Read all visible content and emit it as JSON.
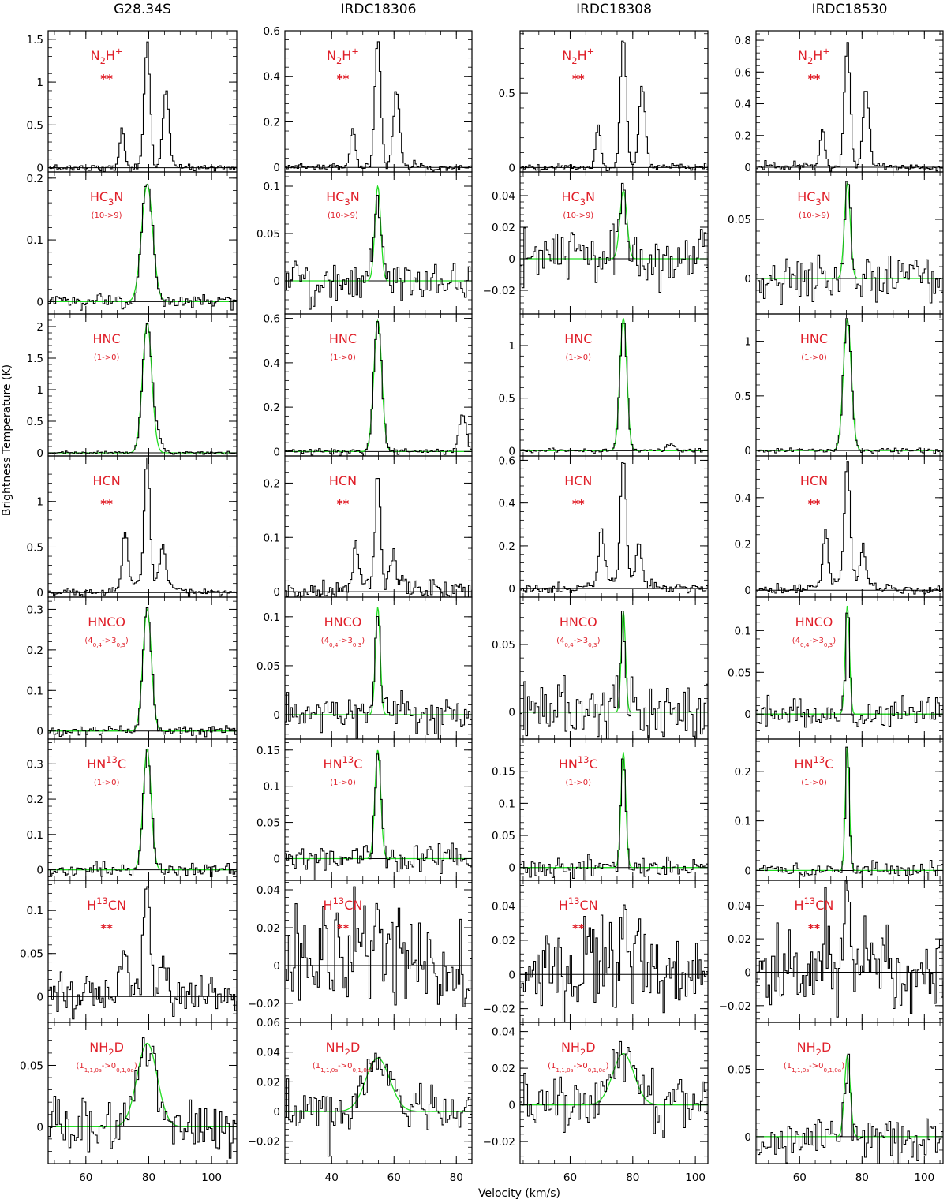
{
  "chart_data": {
    "type": "line",
    "xlabel": "Velocity (km/s)",
    "ylabel": "Brightness Temperature (K)",
    "columns": [
      {
        "name": "G28.34S",
        "v_lsr": 79.5,
        "xlim": [
          48,
          108
        ],
        "xticks": [
          60,
          80,
          100
        ]
      },
      {
        "name": "IRDC18306",
        "v_lsr": 54.8,
        "xlim": [
          25,
          85
        ],
        "xticks": [
          40,
          60,
          80
        ]
      },
      {
        "name": "IRDC18308",
        "v_lsr": 77.0,
        "xlim": [
          44,
          104
        ],
        "xticks": [
          60,
          80,
          100
        ]
      },
      {
        "name": "IRDC18530",
        "v_lsr": 75.3,
        "xlim": [
          46,
          106
        ],
        "xticks": [
          60,
          80,
          100
        ]
      }
    ],
    "rows": [
      {
        "molecule": "N<sub>2</sub>H<sup>+</sup>",
        "transition": "",
        "flag": "**",
        "profile": "n2h",
        "fit": false,
        "panels": [
          {
            "ylim": [
              -0.05,
              1.6
            ],
            "yticks": [
              "0",
              "0.5",
              "1",
              "1.5"
            ],
            "yvals": [
              0,
              0.5,
              1,
              1.5
            ],
            "peak": 1.45,
            "noise": 0.02
          },
          {
            "ylim": [
              -0.02,
              0.6
            ],
            "yticks": [
              "0",
              "0.2",
              "0.4",
              "0.6"
            ],
            "yvals": [
              0,
              0.2,
              0.4,
              0.6
            ],
            "peak": 0.56,
            "noise": 0.008
          },
          {
            "ylim": [
              -0.03,
              0.92
            ],
            "yticks": [
              "0",
              "0.5"
            ],
            "yvals": [
              0,
              0.5
            ],
            "peak": 0.88,
            "noise": 0.012
          },
          {
            "ylim": [
              -0.03,
              0.86
            ],
            "yticks": [
              "0",
              "0.2",
              "0.4",
              "0.6",
              "0.8"
            ],
            "yvals": [
              0,
              0.2,
              0.4,
              0.6,
              0.8
            ],
            "peak": 0.8,
            "noise": 0.012
          }
        ]
      },
      {
        "molecule": "HC<sub>3</sub>N",
        "transition": "(10->9)",
        "flag": "",
        "profile": "gauss",
        "fit": true,
        "panels": [
          {
            "ylim": [
              -0.02,
              0.21
            ],
            "yticks": [
              "0",
              "0.1",
              "0.2"
            ],
            "yvals": [
              0,
              0.1,
              0.2
            ],
            "peak": 0.19,
            "width": 4.2,
            "noise": 0.006
          },
          {
            "ylim": [
              -0.035,
              0.115
            ],
            "yticks": [
              "0",
              "0.05",
              "0.1"
            ],
            "yvals": [
              0,
              0.05,
              0.1
            ],
            "peak": 0.1,
            "width": 2.2,
            "noise": 0.011
          },
          {
            "ylim": [
              -0.035,
              0.055
            ],
            "yticks": [
              "−0.02",
              "0",
              "0.02",
              "0.04"
            ],
            "yvals": [
              -0.02,
              0,
              0.02,
              0.04
            ],
            "peak": 0.043,
            "width": 2.6,
            "noise": 0.01
          },
          {
            "ylim": [
              -0.03,
              0.09
            ],
            "yticks": [
              "0",
              "0.05"
            ],
            "yvals": [
              0,
              0.05
            ],
            "peak": 0.08,
            "width": 2.2,
            "noise": 0.01
          }
        ]
      },
      {
        "molecule": "HNC",
        "transition": "(1->0)",
        "flag": "",
        "profile": "gauss",
        "fit": true,
        "panels": [
          {
            "ylim": [
              -0.05,
              2.2
            ],
            "yticks": [
              "0",
              "0.5",
              "1",
              "1.5",
              "2"
            ],
            "yvals": [
              0,
              0.5,
              1,
              1.5,
              2
            ],
            "peak": 2.05,
            "width": 3.5,
            "noise": 0.012,
            "extra": [
              [
                83,
                0.25,
                3
              ]
            ]
          },
          {
            "ylim": [
              -0.02,
              0.62
            ],
            "yticks": [
              "0",
              "0.2",
              "0.4",
              "0.6"
            ],
            "yvals": [
              0,
              0.2,
              0.4,
              0.6
            ],
            "peak": 0.59,
            "width": 3.0,
            "noise": 0.006,
            "extra": [
              [
                82,
                0.18,
                2.5
              ]
            ]
          },
          {
            "ylim": [
              -0.05,
              1.3
            ],
            "yticks": [
              "0",
              "0.5",
              "1"
            ],
            "yvals": [
              0,
              0.5,
              1
            ],
            "peak": 1.26,
            "width": 2.6,
            "noise": 0.01,
            "extra": [
              [
                92,
                0.06,
                3
              ]
            ]
          },
          {
            "ylim": [
              -0.05,
              1.25
            ],
            "yticks": [
              "0",
              "0.5",
              "1"
            ],
            "yvals": [
              0,
              0.5,
              1
            ],
            "peak": 1.2,
            "width": 3.0,
            "noise": 0.012
          }
        ]
      },
      {
        "molecule": "HCN",
        "transition": "",
        "flag": "**",
        "profile": "hcn",
        "fit": false,
        "panels": [
          {
            "ylim": [
              -0.05,
              1.5
            ],
            "yticks": [
              "0",
              "0.5",
              "1"
            ],
            "yvals": [
              0,
              0.5,
              1
            ],
            "peak": 1.38,
            "noise": 0.02
          },
          {
            "ylim": [
              -0.01,
              0.25
            ],
            "yticks": [
              "0",
              "0.1",
              "0.2"
            ],
            "yvals": [
              0,
              0.1,
              0.2
            ],
            "peak": 0.19,
            "noise": 0.01
          },
          {
            "ylim": [
              -0.04,
              0.62
            ],
            "yticks": [
              "0",
              "0.2",
              "0.4",
              "0.6"
            ],
            "yvals": [
              0,
              0.2,
              0.4,
              0.6
            ],
            "peak": 0.56,
            "noise": 0.012
          },
          {
            "ylim": [
              -0.03,
              0.58
            ],
            "yticks": [
              "0",
              "0.2",
              "0.4"
            ],
            "yvals": [
              0,
              0.2,
              0.4
            ],
            "peak": 0.52,
            "noise": 0.01
          }
        ]
      },
      {
        "molecule": "HNCO",
        "transition": "(4<sub>0,4</sub>->3<sub>0,3</sub>)",
        "flag": "",
        "profile": "gauss",
        "fit": true,
        "panels": [
          {
            "ylim": [
              -0.02,
              0.33
            ],
            "yticks": [
              "0",
              "0.1",
              "0.2",
              "0.3"
            ],
            "yvals": [
              0,
              0.1,
              0.2,
              0.3
            ],
            "peak": 0.3,
            "width": 3.2,
            "noise": 0.006
          },
          {
            "ylim": [
              -0.025,
              0.12
            ],
            "yticks": [
              "0",
              "0.05",
              "0.1"
            ],
            "yvals": [
              0,
              0.05,
              0.1
            ],
            "peak": 0.11,
            "width": 1.8,
            "noise": 0.01
          },
          {
            "ylim": [
              -0.02,
              0.085
            ],
            "yticks": [
              "0",
              "0.05"
            ],
            "yvals": [
              0,
              0.05
            ],
            "peak": 0.075,
            "width": 1.6,
            "noise": 0.011
          },
          {
            "ylim": [
              -0.03,
              0.14
            ],
            "yticks": [
              "0",
              "0.05",
              "0.1"
            ],
            "yvals": [
              0,
              0.05,
              0.1
            ],
            "peak": 0.13,
            "width": 1.6,
            "noise": 0.009
          }
        ]
      },
      {
        "molecule": "HN<sup>13</sup>C",
        "transition": "(1->0)",
        "flag": "",
        "profile": "gauss",
        "fit": true,
        "panels": [
          {
            "ylim": [
              -0.03,
              0.37
            ],
            "yticks": [
              "0",
              "0.1",
              "0.2",
              "0.3"
            ],
            "yvals": [
              0,
              0.1,
              0.2,
              0.3
            ],
            "peak": 0.34,
            "width": 3.0,
            "noise": 0.01
          },
          {
            "ylim": [
              -0.03,
              0.165
            ],
            "yticks": [
              "0",
              "0.05",
              "0.1",
              "0.15"
            ],
            "yvals": [
              0,
              0.05,
              0.1,
              0.15
            ],
            "peak": 0.15,
            "width": 2.2,
            "noise": 0.01
          },
          {
            "ylim": [
              -0.02,
              0.2
            ],
            "yticks": [
              "0",
              "0.05",
              "0.1",
              "0.15"
            ],
            "yvals": [
              0,
              0.05,
              0.1,
              0.15
            ],
            "peak": 0.18,
            "width": 1.8,
            "noise": 0.008
          },
          {
            "ylim": [
              -0.02,
              0.265
            ],
            "yticks": [
              "0",
              "0.1",
              "0.2"
            ],
            "yvals": [
              0,
              0.1,
              0.2
            ],
            "peak": 0.25,
            "width": 1.5,
            "noise": 0.009
          }
        ]
      },
      {
        "molecule": "H<sup>13</sup>CN",
        "transition": "",
        "flag": "**",
        "profile": "hcn",
        "fit": false,
        "panels": [
          {
            "ylim": [
              -0.03,
              0.135
            ],
            "yticks": [
              "0",
              "0.05",
              "0.1"
            ],
            "yvals": [
              0,
              0.05,
              0.1
            ],
            "peak": 0.12,
            "noise": 0.012
          },
          {
            "ylim": [
              -0.03,
              0.045
            ],
            "yticks": [
              "−0.02",
              "0",
              "0.02",
              "0.04"
            ],
            "yvals": [
              -0.02,
              0,
              0.02,
              0.04
            ],
            "peak": 0.03,
            "noise": 0.014
          },
          {
            "ylim": [
              -0.028,
              0.055
            ],
            "yticks": [
              "−0.02",
              "0",
              "0.02",
              "0.04"
            ],
            "yvals": [
              -0.02,
              0,
              0.02,
              0.04
            ],
            "peak": 0.04,
            "noise": 0.012
          },
          {
            "ylim": [
              -0.03,
              0.055
            ],
            "yticks": [
              "−0.02",
              "0",
              "0.02",
              "0.04"
            ],
            "yvals": [
              -0.02,
              0,
              0.02,
              0.04
            ],
            "peak": 0.045,
            "noise": 0.012
          }
        ]
      },
      {
        "molecule": "NH<sub>2</sub>D",
        "transition": "(1<sub>1,1,0s</sub>->0<sub>0,1,0a</sub>)",
        "flag": "",
        "profile": "gauss",
        "fit": true,
        "panels": [
          {
            "ylim": [
              -0.03,
              0.085
            ],
            "yticks": [
              "0",
              "0.05"
            ],
            "yvals": [
              0,
              0.05
            ],
            "peak": 0.068,
            "width": 7.5,
            "noise": 0.01
          },
          {
            "ylim": [
              -0.035,
              0.06
            ],
            "yticks": [
              "−0.02",
              "0",
              "0.02",
              "0.04",
              "0.06"
            ],
            "yvals": [
              -0.02,
              0,
              0.02,
              0.04,
              0.06
            ],
            "peak": 0.036,
            "width": 9.0,
            "noise": 0.008
          },
          {
            "ylim": [
              -0.032,
              0.045
            ],
            "yticks": [
              "−0.02",
              "0",
              "0.02",
              "0.04"
            ],
            "yvals": [
              -0.02,
              0,
              0.02,
              0.04
            ],
            "peak": 0.028,
            "width": 8.0,
            "noise": 0.008
          },
          {
            "ylim": [
              -0.02,
              0.085
            ],
            "yticks": [
              "0",
              "0.05"
            ],
            "yvals": [
              0,
              0.05
            ],
            "peak": 0.06,
            "width": 2.2,
            "noise": 0.009
          }
        ]
      }
    ]
  }
}
